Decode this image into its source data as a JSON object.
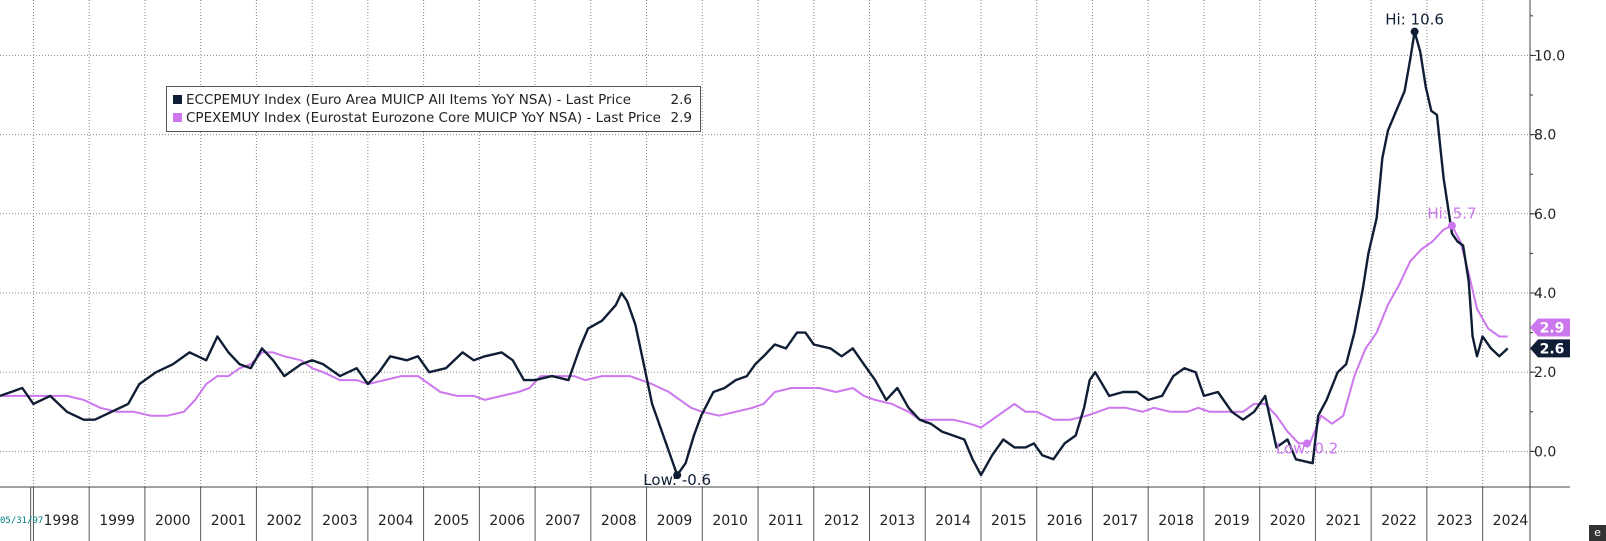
{
  "chart_data": {
    "type": "line",
    "title": "",
    "xlabel": "",
    "ylabel": "",
    "xlim": [
      1997.4,
      2024.85
    ],
    "ylim": [
      -0.9,
      11.4
    ],
    "yticks": [
      0.0,
      2.0,
      4.0,
      6.0,
      8.0,
      10.0
    ],
    "ytick_labels": [
      "0.0",
      "2.0",
      "4.0",
      "6.0",
      "8.0",
      "10.0"
    ],
    "xtick_labels": [
      "1998",
      "1999",
      "2000",
      "2001",
      "2002",
      "2003",
      "2004",
      "2005",
      "2006",
      "2007",
      "2008",
      "2009",
      "2010",
      "2011",
      "2012",
      "2013",
      "2014",
      "2015",
      "2016",
      "2017",
      "2018",
      "2019",
      "2020",
      "2021",
      "2022",
      "2023",
      "2024"
    ],
    "grid": true,
    "legend_position": "top-left",
    "start_date_label": "05/31/97",
    "series": [
      {
        "name": "ECCPEMUY Index (Euro Area MUICP All Items YoY NSA) - Last Price",
        "last_price": "2.6",
        "color": "#0f1e35",
        "points": [
          [
            1997.4,
            1.4
          ],
          [
            1997.6,
            1.5
          ],
          [
            1997.8,
            1.6
          ],
          [
            1998.0,
            1.2
          ],
          [
            1998.3,
            1.4
          ],
          [
            1998.6,
            1.0
          ],
          [
            1998.9,
            0.8
          ],
          [
            1999.1,
            0.8
          ],
          [
            1999.4,
            1.0
          ],
          [
            1999.7,
            1.2
          ],
          [
            1999.9,
            1.7
          ],
          [
            2000.2,
            2.0
          ],
          [
            2000.5,
            2.2
          ],
          [
            2000.8,
            2.5
          ],
          [
            2000.95,
            2.4
          ],
          [
            2001.1,
            2.3
          ],
          [
            2001.3,
            2.9
          ],
          [
            2001.5,
            2.5
          ],
          [
            2001.7,
            2.2
          ],
          [
            2001.9,
            2.1
          ],
          [
            2002.1,
            2.6
          ],
          [
            2002.3,
            2.3
          ],
          [
            2002.5,
            1.9
          ],
          [
            2002.8,
            2.2
          ],
          [
            2003.0,
            2.3
          ],
          [
            2003.2,
            2.2
          ],
          [
            2003.5,
            1.9
          ],
          [
            2003.8,
            2.1
          ],
          [
            2004.0,
            1.7
          ],
          [
            2004.2,
            2.0
          ],
          [
            2004.4,
            2.4
          ],
          [
            2004.7,
            2.3
          ],
          [
            2004.9,
            2.4
          ],
          [
            2005.1,
            2.0
          ],
          [
            2005.4,
            2.1
          ],
          [
            2005.7,
            2.5
          ],
          [
            2005.9,
            2.3
          ],
          [
            2006.1,
            2.4
          ],
          [
            2006.4,
            2.5
          ],
          [
            2006.6,
            2.3
          ],
          [
            2006.8,
            1.8
          ],
          [
            2007.0,
            1.8
          ],
          [
            2007.3,
            1.9
          ],
          [
            2007.6,
            1.8
          ],
          [
            2007.8,
            2.6
          ],
          [
            2007.95,
            3.1
          ],
          [
            2008.2,
            3.3
          ],
          [
            2008.45,
            3.7
          ],
          [
            2008.55,
            4.0
          ],
          [
            2008.65,
            3.8
          ],
          [
            2008.8,
            3.2
          ],
          [
            2008.95,
            2.2
          ],
          [
            2009.1,
            1.2
          ],
          [
            2009.25,
            0.6
          ],
          [
            2009.4,
            0.0
          ],
          [
            2009.55,
            -0.6
          ],
          [
            2009.7,
            -0.3
          ],
          [
            2009.85,
            0.4
          ],
          [
            2009.98,
            0.9
          ],
          [
            2010.2,
            1.5
          ],
          [
            2010.4,
            1.6
          ],
          [
            2010.6,
            1.8
          ],
          [
            2010.8,
            1.9
          ],
          [
            2010.95,
            2.2
          ],
          [
            2011.1,
            2.4
          ],
          [
            2011.3,
            2.7
          ],
          [
            2011.5,
            2.6
          ],
          [
            2011.7,
            3.0
          ],
          [
            2011.85,
            3.0
          ],
          [
            2012.0,
            2.7
          ],
          [
            2012.3,
            2.6
          ],
          [
            2012.5,
            2.4
          ],
          [
            2012.7,
            2.6
          ],
          [
            2012.9,
            2.2
          ],
          [
            2013.1,
            1.8
          ],
          [
            2013.3,
            1.3
          ],
          [
            2013.5,
            1.6
          ],
          [
            2013.7,
            1.1
          ],
          [
            2013.9,
            0.8
          ],
          [
            2014.1,
            0.7
          ],
          [
            2014.3,
            0.5
          ],
          [
            2014.5,
            0.4
          ],
          [
            2014.7,
            0.3
          ],
          [
            2014.85,
            -0.2
          ],
          [
            2015.0,
            -0.6
          ],
          [
            2015.2,
            -0.1
          ],
          [
            2015.4,
            0.3
          ],
          [
            2015.6,
            0.1
          ],
          [
            2015.8,
            0.1
          ],
          [
            2015.95,
            0.2
          ],
          [
            2016.1,
            -0.1
          ],
          [
            2016.3,
            -0.2
          ],
          [
            2016.5,
            0.2
          ],
          [
            2016.7,
            0.4
          ],
          [
            2016.85,
            1.1
          ],
          [
            2016.95,
            1.8
          ],
          [
            2017.05,
            2.0
          ],
          [
            2017.3,
            1.4
          ],
          [
            2017.55,
            1.5
          ],
          [
            2017.8,
            1.5
          ],
          [
            2018.0,
            1.3
          ],
          [
            2018.25,
            1.4
          ],
          [
            2018.45,
            1.9
          ],
          [
            2018.65,
            2.1
          ],
          [
            2018.85,
            2.0
          ],
          [
            2019.0,
            1.4
          ],
          [
            2019.25,
            1.5
          ],
          [
            2019.5,
            1.0
          ],
          [
            2019.7,
            0.8
          ],
          [
            2019.9,
            1.0
          ],
          [
            2020.1,
            1.4
          ],
          [
            2020.3,
            0.1
          ],
          [
            2020.5,
            0.3
          ],
          [
            2020.65,
            -0.2
          ],
          [
            2020.95,
            -0.3
          ],
          [
            2021.05,
            0.9
          ],
          [
            2021.2,
            1.3
          ],
          [
            2021.4,
            2.0
          ],
          [
            2021.55,
            2.2
          ],
          [
            2021.7,
            3.0
          ],
          [
            2021.85,
            4.1
          ],
          [
            2021.95,
            5.0
          ],
          [
            2022.1,
            5.9
          ],
          [
            2022.2,
            7.4
          ],
          [
            2022.3,
            8.1
          ],
          [
            2022.45,
            8.6
          ],
          [
            2022.6,
            9.1
          ],
          [
            2022.7,
            9.9
          ],
          [
            2022.78,
            10.6
          ],
          [
            2022.88,
            10.1
          ],
          [
            2022.98,
            9.2
          ],
          [
            2023.08,
            8.6
          ],
          [
            2023.18,
            8.5
          ],
          [
            2023.3,
            6.9
          ],
          [
            2023.45,
            5.5
          ],
          [
            2023.55,
            5.3
          ],
          [
            2023.65,
            5.2
          ],
          [
            2023.75,
            4.3
          ],
          [
            2023.82,
            2.9
          ],
          [
            2023.9,
            2.4
          ],
          [
            2024.0,
            2.9
          ],
          [
            2024.15,
            2.6
          ],
          [
            2024.3,
            2.4
          ],
          [
            2024.45,
            2.6
          ]
        ]
      },
      {
        "name": "CPEXEMUY Index (Eurostat Eurozone Core MUICP YoY NSA) - Last Price",
        "last_price": "2.9",
        "color": "#cc77ee",
        "points": [
          [
            1997.4,
            1.4
          ],
          [
            1997.7,
            1.4
          ],
          [
            1998.0,
            1.4
          ],
          [
            1998.3,
            1.4
          ],
          [
            1998.6,
            1.4
          ],
          [
            1998.9,
            1.3
          ],
          [
            1999.2,
            1.1
          ],
          [
            1999.5,
            1.0
          ],
          [
            1999.8,
            1.0
          ],
          [
            2000.1,
            0.9
          ],
          [
            2000.4,
            0.9
          ],
          [
            2000.7,
            1.0
          ],
          [
            2000.9,
            1.3
          ],
          [
            2001.1,
            1.7
          ],
          [
            2001.3,
            1.9
          ],
          [
            2001.5,
            1.9
          ],
          [
            2001.7,
            2.1
          ],
          [
            2001.9,
            2.2
          ],
          [
            2002.1,
            2.5
          ],
          [
            2002.3,
            2.5
          ],
          [
            2002.5,
            2.4
          ],
          [
            2002.8,
            2.3
          ],
          [
            2003.0,
            2.1
          ],
          [
            2003.2,
            2.0
          ],
          [
            2003.5,
            1.8
          ],
          [
            2003.8,
            1.8
          ],
          [
            2004.0,
            1.7
          ],
          [
            2004.3,
            1.8
          ],
          [
            2004.6,
            1.9
          ],
          [
            2004.9,
            1.9
          ],
          [
            2005.1,
            1.7
          ],
          [
            2005.3,
            1.5
          ],
          [
            2005.6,
            1.4
          ],
          [
            2005.9,
            1.4
          ],
          [
            2006.1,
            1.3
          ],
          [
            2006.4,
            1.4
          ],
          [
            2006.7,
            1.5
          ],
          [
            2006.9,
            1.6
          ],
          [
            2007.1,
            1.9
          ],
          [
            2007.4,
            1.9
          ],
          [
            2007.7,
            1.9
          ],
          [
            2007.9,
            1.8
          ],
          [
            2008.2,
            1.9
          ],
          [
            2008.5,
            1.9
          ],
          [
            2008.7,
            1.9
          ],
          [
            2008.9,
            1.8
          ],
          [
            2009.1,
            1.7
          ],
          [
            2009.4,
            1.5
          ],
          [
            2009.6,
            1.3
          ],
          [
            2009.8,
            1.1
          ],
          [
            2010.0,
            1.0
          ],
          [
            2010.3,
            0.9
          ],
          [
            2010.6,
            1.0
          ],
          [
            2010.9,
            1.1
          ],
          [
            2011.1,
            1.2
          ],
          [
            2011.3,
            1.5
          ],
          [
            2011.6,
            1.6
          ],
          [
            2011.9,
            1.6
          ],
          [
            2012.1,
            1.6
          ],
          [
            2012.4,
            1.5
          ],
          [
            2012.7,
            1.6
          ],
          [
            2012.9,
            1.4
          ],
          [
            2013.1,
            1.3
          ],
          [
            2013.4,
            1.2
          ],
          [
            2013.7,
            1.0
          ],
          [
            2013.9,
            0.8
          ],
          [
            2014.2,
            0.8
          ],
          [
            2014.5,
            0.8
          ],
          [
            2014.8,
            0.7
          ],
          [
            2015.0,
            0.6
          ],
          [
            2015.2,
            0.8
          ],
          [
            2015.4,
            1.0
          ],
          [
            2015.6,
            1.2
          ],
          [
            2015.8,
            1.0
          ],
          [
            2016.0,
            1.0
          ],
          [
            2016.3,
            0.8
          ],
          [
            2016.6,
            0.8
          ],
          [
            2016.9,
            0.9
          ],
          [
            2017.1,
            1.0
          ],
          [
            2017.3,
            1.1
          ],
          [
            2017.6,
            1.1
          ],
          [
            2017.9,
            1.0
          ],
          [
            2018.1,
            1.1
          ],
          [
            2018.4,
            1.0
          ],
          [
            2018.7,
            1.0
          ],
          [
            2018.9,
            1.1
          ],
          [
            2019.1,
            1.0
          ],
          [
            2019.4,
            1.0
          ],
          [
            2019.7,
            1.0
          ],
          [
            2019.9,
            1.2
          ],
          [
            2020.1,
            1.2
          ],
          [
            2020.3,
            0.9
          ],
          [
            2020.5,
            0.5
          ],
          [
            2020.7,
            0.2
          ],
          [
            2020.9,
            0.2
          ],
          [
            2021.1,
            0.9
          ],
          [
            2021.3,
            0.7
          ],
          [
            2021.5,
            0.9
          ],
          [
            2021.7,
            1.9
          ],
          [
            2021.9,
            2.6
          ],
          [
            2022.1,
            3.0
          ],
          [
            2022.3,
            3.7
          ],
          [
            2022.5,
            4.2
          ],
          [
            2022.7,
            4.8
          ],
          [
            2022.9,
            5.1
          ],
          [
            2023.1,
            5.3
          ],
          [
            2023.3,
            5.6
          ],
          [
            2023.45,
            5.7
          ],
          [
            2023.6,
            5.3
          ],
          [
            2023.75,
            4.5
          ],
          [
            2023.9,
            3.6
          ],
          [
            2024.1,
            3.1
          ],
          [
            2024.3,
            2.9
          ],
          [
            2024.45,
            2.9
          ]
        ]
      }
    ],
    "annotations": [
      {
        "text": "Hi: 10.6",
        "x": 2022.78,
        "y": 10.6,
        "series": 0
      },
      {
        "text": "Low: -0.6",
        "x": 2009.55,
        "y": -0.6,
        "series": 0
      },
      {
        "text": "Hi: 5.7",
        "x": 2023.45,
        "y": 5.7,
        "series": 1
      },
      {
        "text": "Low: 0.2",
        "x": 2020.85,
        "y": 0.2,
        "series": 1
      }
    ]
  },
  "legend": {
    "item1_label": "ECCPEMUY Index (Euro Area MUICP All Items YoY NSA) - Last Price",
    "item1_value": "2.6",
    "item2_label": "CPEXEMUY Index (Eurostat Eurozone Core MUICP YoY NSA) - Last Price",
    "item2_value": "2.9"
  },
  "corner_button_label": "e"
}
